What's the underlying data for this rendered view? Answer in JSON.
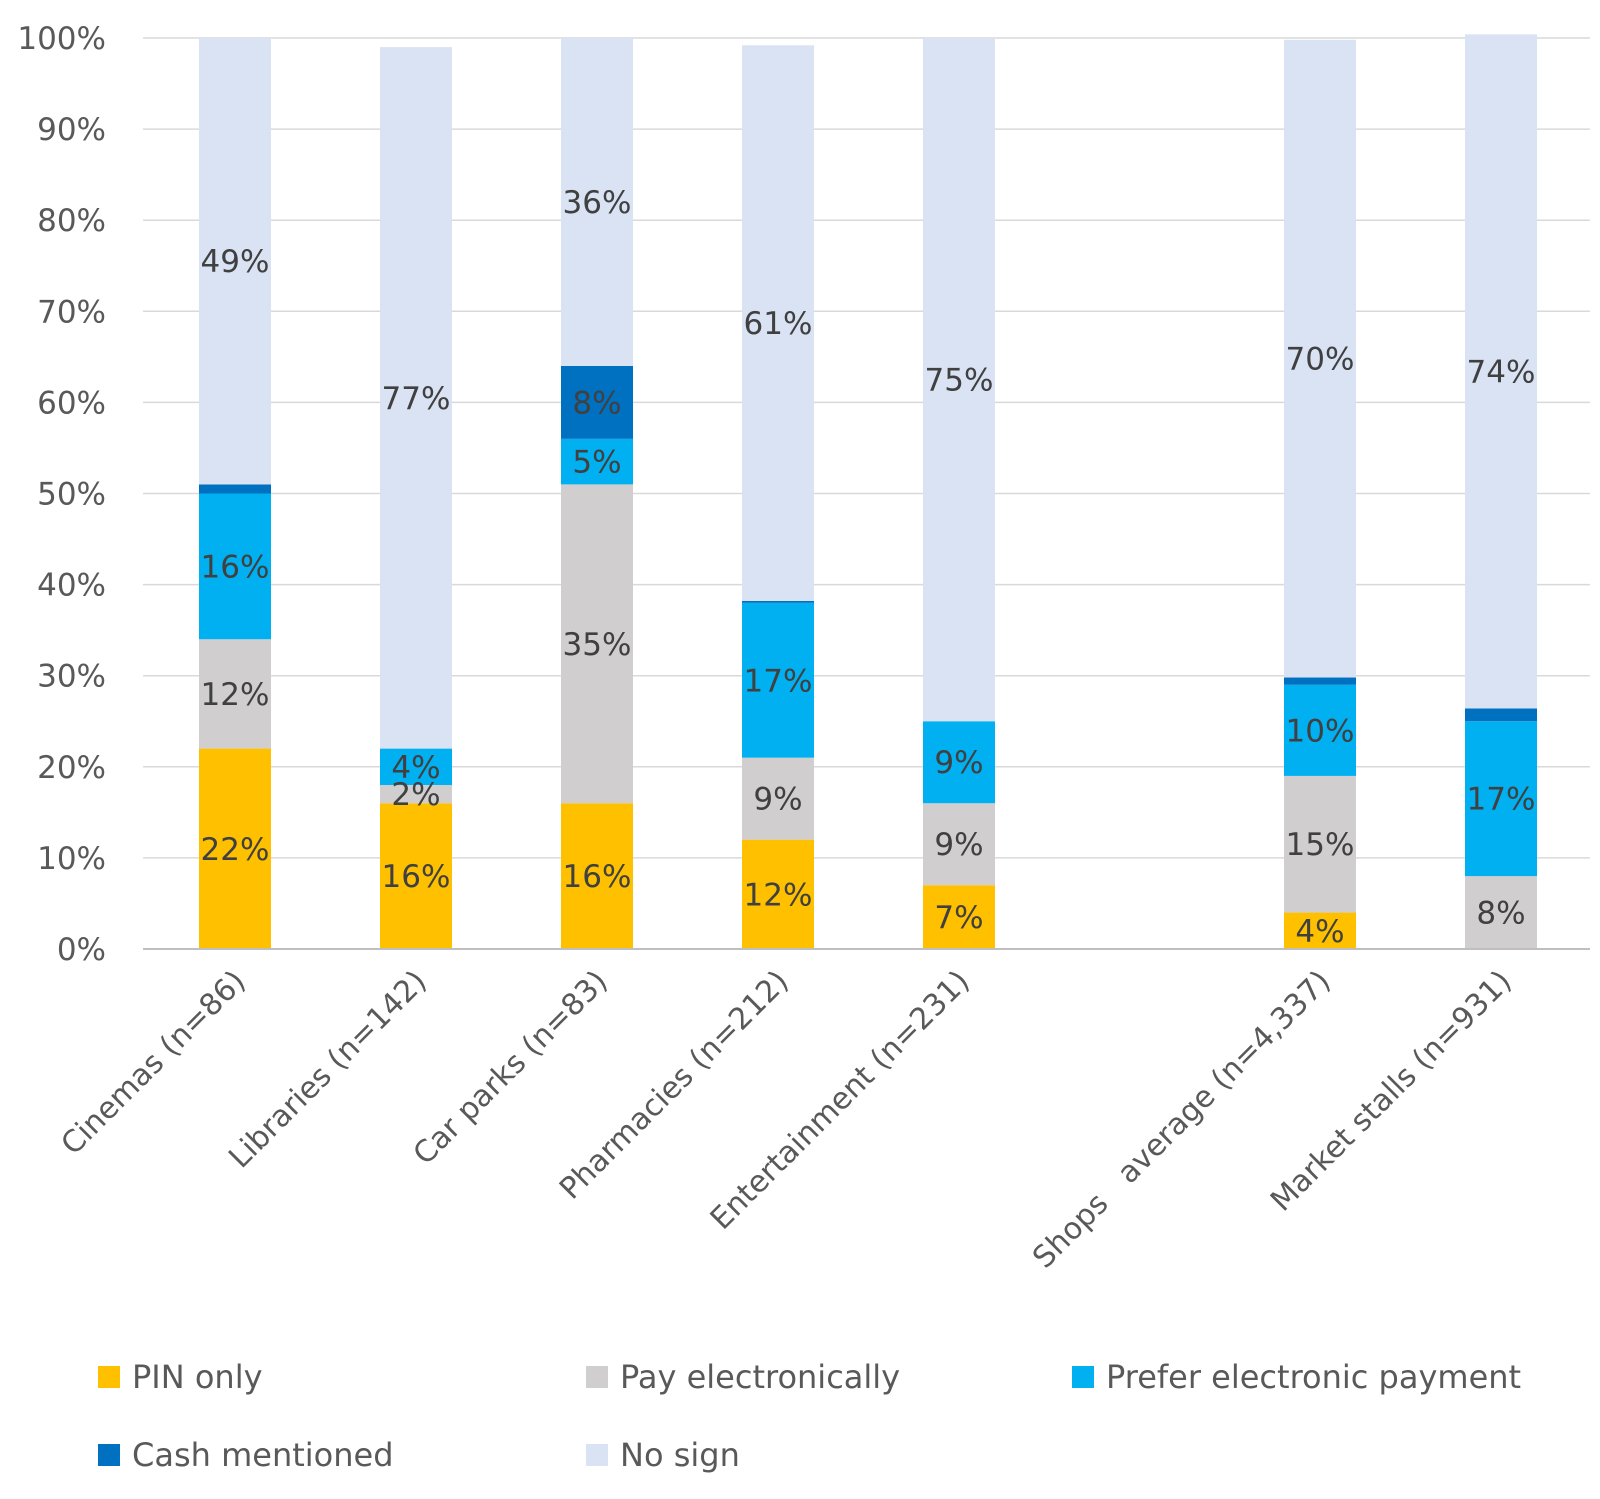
{
  "chart_data": {
    "type": "bar",
    "stacked": true,
    "categories": [
      "Cinemas (n=86)",
      "Libraries (n=142)",
      "Car parks (n=83)",
      "Pharmacies (n=212)",
      "Entertainment (n=231)",
      "",
      "Shops   average (n=4,337)",
      "Market stalls (n=931)"
    ],
    "series": [
      {
        "name": "PIN only",
        "color": "#ffc000",
        "values": [
          22,
          16,
          16,
          12,
          7,
          null,
          4,
          0
        ]
      },
      {
        "name": "Pay electronically",
        "color": "#d0cece",
        "values": [
          12,
          2,
          35,
          9,
          9,
          null,
          15,
          8
        ]
      },
      {
        "name": "Prefer electronic payment",
        "color": "#00b0f0",
        "values": [
          16,
          4,
          5,
          17,
          9,
          null,
          10,
          17
        ]
      },
      {
        "name": "Cash mentioned",
        "color": "#0070c0",
        "values": [
          1,
          0,
          8,
          0.2,
          0,
          null,
          0.8,
          1.4
        ]
      },
      {
        "name": "No sign",
        "color": "#dae3f3",
        "values": [
          49,
          77,
          36,
          61,
          75,
          null,
          70,
          74
        ]
      }
    ],
    "data_labels": [
      [
        "22%",
        "16%",
        "16%",
        "12%",
        "7%",
        null,
        "4%",
        ""
      ],
      [
        "12%",
        "2%",
        "35%",
        "9%",
        "9%",
        null,
        "15%",
        "8%"
      ],
      [
        "16%",
        "4%",
        "5%",
        "17%",
        "9%",
        null,
        "10%",
        "17%"
      ],
      [
        "",
        "",
        "8%",
        "",
        "",
        null,
        "",
        ""
      ],
      [
        "49%",
        "77%",
        "36%",
        "61%",
        "75%",
        null,
        "70%",
        "74%"
      ]
    ],
    "y_ticks": [
      "0%",
      "10%",
      "20%",
      "30%",
      "40%",
      "50%",
      "60%",
      "70%",
      "80%",
      "90%",
      "100%"
    ],
    "ylim": [
      0,
      100
    ],
    "grid": true,
    "legend_position": "bottom",
    "title": "",
    "xlabel": "",
    "ylabel": ""
  }
}
